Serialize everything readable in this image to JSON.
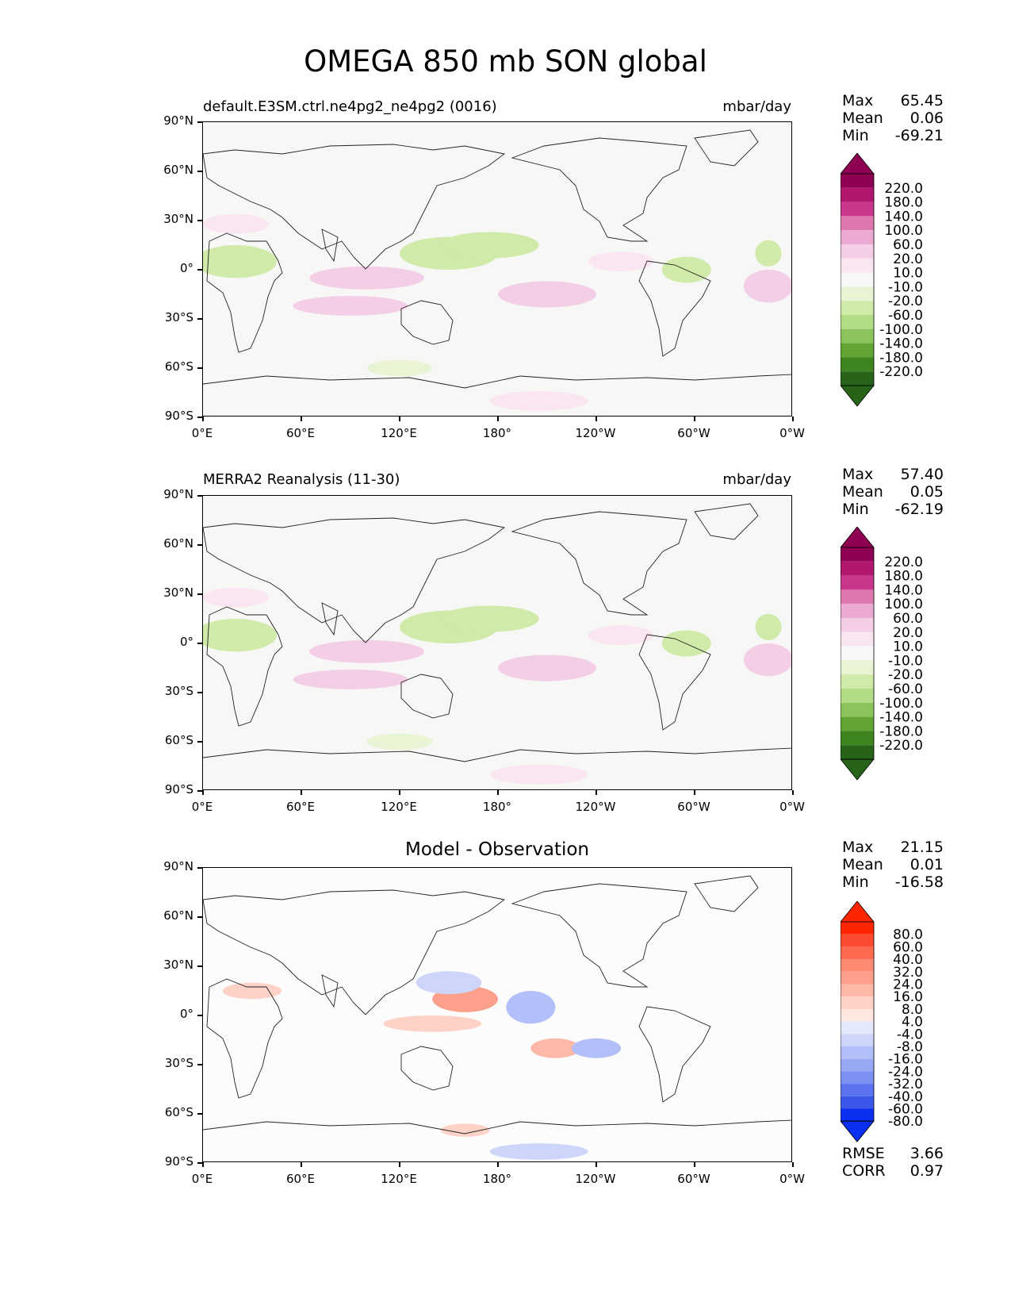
{
  "figure": {
    "title": "OMEGA 850 mb SON global"
  },
  "axes": {
    "yticks": [
      "90°N",
      "60°N",
      "30°N",
      "0°",
      "30°S",
      "60°S",
      "90°S"
    ],
    "xticks": [
      "0°E",
      "60°E",
      "120°E",
      "180°",
      "120°W",
      "60°W",
      "0°W"
    ]
  },
  "panels": [
    {
      "left_title": "default.E3SM.ctrl.ne4pg2_ne4pg2 (0016)",
      "right_title": "mbar/day",
      "stats": {
        "max_label": "Max",
        "max": "65.45",
        "mean_label": "Mean",
        "mean": "0.06",
        "min_label": "Min",
        "min": "-69.21"
      },
      "colorbar": [
        "220.0",
        "180.0",
        "140.0",
        "100.0",
        "60.0",
        "20.0",
        "10.0",
        "-10.0",
        "-20.0",
        "-60.0",
        "-100.0",
        "-140.0",
        "-180.0",
        "-220.0"
      ]
    },
    {
      "left_title": "MERRA2 Reanalysis (11-30)",
      "right_title": "mbar/day",
      "stats": {
        "max_label": "Max",
        "max": "57.40",
        "mean_label": "Mean",
        "mean": "0.05",
        "min_label": "Min",
        "min": "-62.19"
      },
      "colorbar": [
        "220.0",
        "180.0",
        "140.0",
        "100.0",
        "60.0",
        "20.0",
        "10.0",
        "-10.0",
        "-20.0",
        "-60.0",
        "-100.0",
        "-140.0",
        "-180.0",
        "-220.0"
      ]
    },
    {
      "center_title": "Model - Observation",
      "stats": {
        "max_label": "Max",
        "max": "21.15",
        "mean_label": "Mean",
        "mean": "0.01",
        "min_label": "Min",
        "min": "-16.58"
      },
      "colorbar": [
        "80.0",
        "60.0",
        "40.0",
        "32.0",
        "24.0",
        "16.0",
        "8.0",
        "4.0",
        "-4.0",
        "-8.0",
        "-16.0",
        "-24.0",
        "-32.0",
        "-40.0",
        "-60.0",
        "-80.0"
      ],
      "metrics": {
        "rmse_label": "RMSE",
        "rmse": "3.66",
        "corr_label": "CORR",
        "corr": "0.97"
      }
    }
  ],
  "colors": {
    "omega_scale": [
      "#8e0152",
      "#b0176d",
      "#c9378c",
      "#de77ae",
      "#ebaad2",
      "#f4cde6",
      "#fae6f1",
      "#f7f7f7",
      "#e8f4d4",
      "#cfeaa9",
      "#b3dc86",
      "#8bc45b",
      "#62a535",
      "#3f851f",
      "#276419"
    ],
    "diff_scale": [
      "#ff2600",
      "#fe4a30",
      "#fd6a50",
      "#fc8a72",
      "#fca08c",
      "#fdb8a7",
      "#fed2c6",
      "#fee7df",
      "#ffffff",
      "#e4e9fd",
      "#cdd5fb",
      "#b3bff8",
      "#98a8f5",
      "#7b90f2",
      "#5b73ee",
      "#3a57ea",
      "#0a2ff0"
    ],
    "background": "#f7f7f5"
  }
}
